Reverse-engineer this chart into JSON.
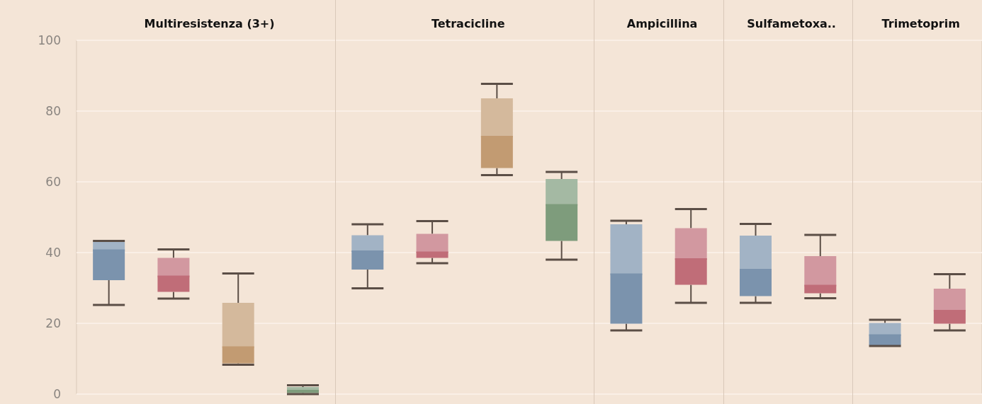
{
  "chart_data": {
    "type": "box",
    "categories": [
      null,
      null,
      null,
      null,
      null,
      null,
      null,
      null,
      null,
      null,
      null,
      null,
      null,
      null
    ],
    "annotations": [
      "Multiresistenza (3+)",
      "Tetracicline",
      "Ampicillina",
      "Sulfametoxa..",
      "Trimetoprim"
    ],
    "colors": [
      "#7b93ad",
      "#c06d78",
      "#c29b72",
      "#7e9c7c",
      "#7b93ad",
      "#c06d78",
      "#c29b72",
      "#7e9c7c",
      "#7b93ad",
      "#c06d78",
      "#7b93ad",
      "#c06d78",
      "#7b93ad",
      "#c06d78"
    ],
    "boxes": [
      {
        "low": 25.2,
        "q1": 32.2,
        "median": 40.7,
        "q3": 43,
        "high": 43.3
      },
      {
        "low": 27,
        "q1": 28.9,
        "median": 33.3,
        "q3": 38.5,
        "high": 40.9
      },
      {
        "low": 8.3,
        "q1": 8.7,
        "median": 13.3,
        "q3": 25.8,
        "high": 34.1
      },
      {
        "low": 0,
        "q1": 0.3,
        "median": 1,
        "q3": 2,
        "high": 2.5
      },
      {
        "low": 29.9,
        "q1": 35.2,
        "median": 40.4,
        "q3": 44.9,
        "high": 48
      },
      {
        "low": 37,
        "q1": 38.5,
        "median": 40.1,
        "q3": 45.3,
        "high": 48.9
      },
      {
        "low": 61.9,
        "q1": 63.9,
        "median": 72.8,
        "q3": 83.6,
        "high": 87.7
      },
      {
        "low": 38,
        "q1": 43.3,
        "median": 53.5,
        "q3": 60.8,
        "high": 62.8
      },
      {
        "low": 18,
        "q1": 19.9,
        "median": 33.9,
        "q3": 48,
        "high": 49
      },
      {
        "low": 25.8,
        "q1": 30.9,
        "median": 38.2,
        "q3": 46.9,
        "high": 52.3
      },
      {
        "low": 25.8,
        "q1": 27.7,
        "median": 35.2,
        "q3": 44.8,
        "high": 48.1
      },
      {
        "low": 27.1,
        "q1": 28.5,
        "median": 30.7,
        "q3": 39,
        "high": 45
      },
      {
        "low": 13.6,
        "q1": 13.8,
        "median": 16.7,
        "q3": 20.1,
        "high": 21
      },
      {
        "low": 18,
        "q1": 19.9,
        "median": 23.6,
        "q3": 29.8,
        "high": 33.9
      }
    ],
    "ylim": [
      0,
      100
    ],
    "yticks": [
      0,
      20,
      40,
      60,
      80,
      100
    ],
    "grid": "y",
    "tick_labels": "y"
  }
}
